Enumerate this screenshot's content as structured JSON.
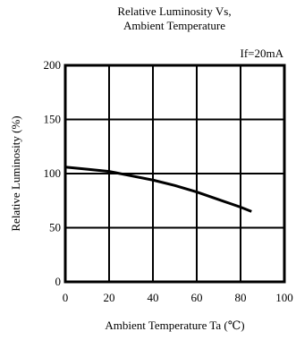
{
  "chart_data": {
    "type": "line",
    "title_line1": "Relative Luminosity Vs,",
    "title_line2": "Ambient Temperature",
    "condition": "If=20mA",
    "xlabel": "Ambient  Temperature  Ta  (℃)",
    "ylabel": "Relative  Luminosity (%)",
    "xlim": [
      0,
      100
    ],
    "ylim": [
      0,
      200
    ],
    "x_ticks": [
      0,
      20,
      40,
      60,
      80,
      100
    ],
    "y_ticks": [
      0,
      50,
      100,
      150,
      200
    ],
    "x_tick_labels": [
      "0",
      "20",
      "40",
      "60",
      "80",
      "100"
    ],
    "y_tick_labels": [
      "0",
      "50",
      "100",
      "150",
      "200"
    ],
    "grid": true,
    "series": [
      {
        "x": [
          0,
          10,
          20,
          30,
          40,
          50,
          60,
          70,
          80,
          85
        ],
        "y": [
          106,
          104,
          102,
          98,
          94,
          89,
          83,
          76,
          69,
          65
        ]
      }
    ]
  }
}
